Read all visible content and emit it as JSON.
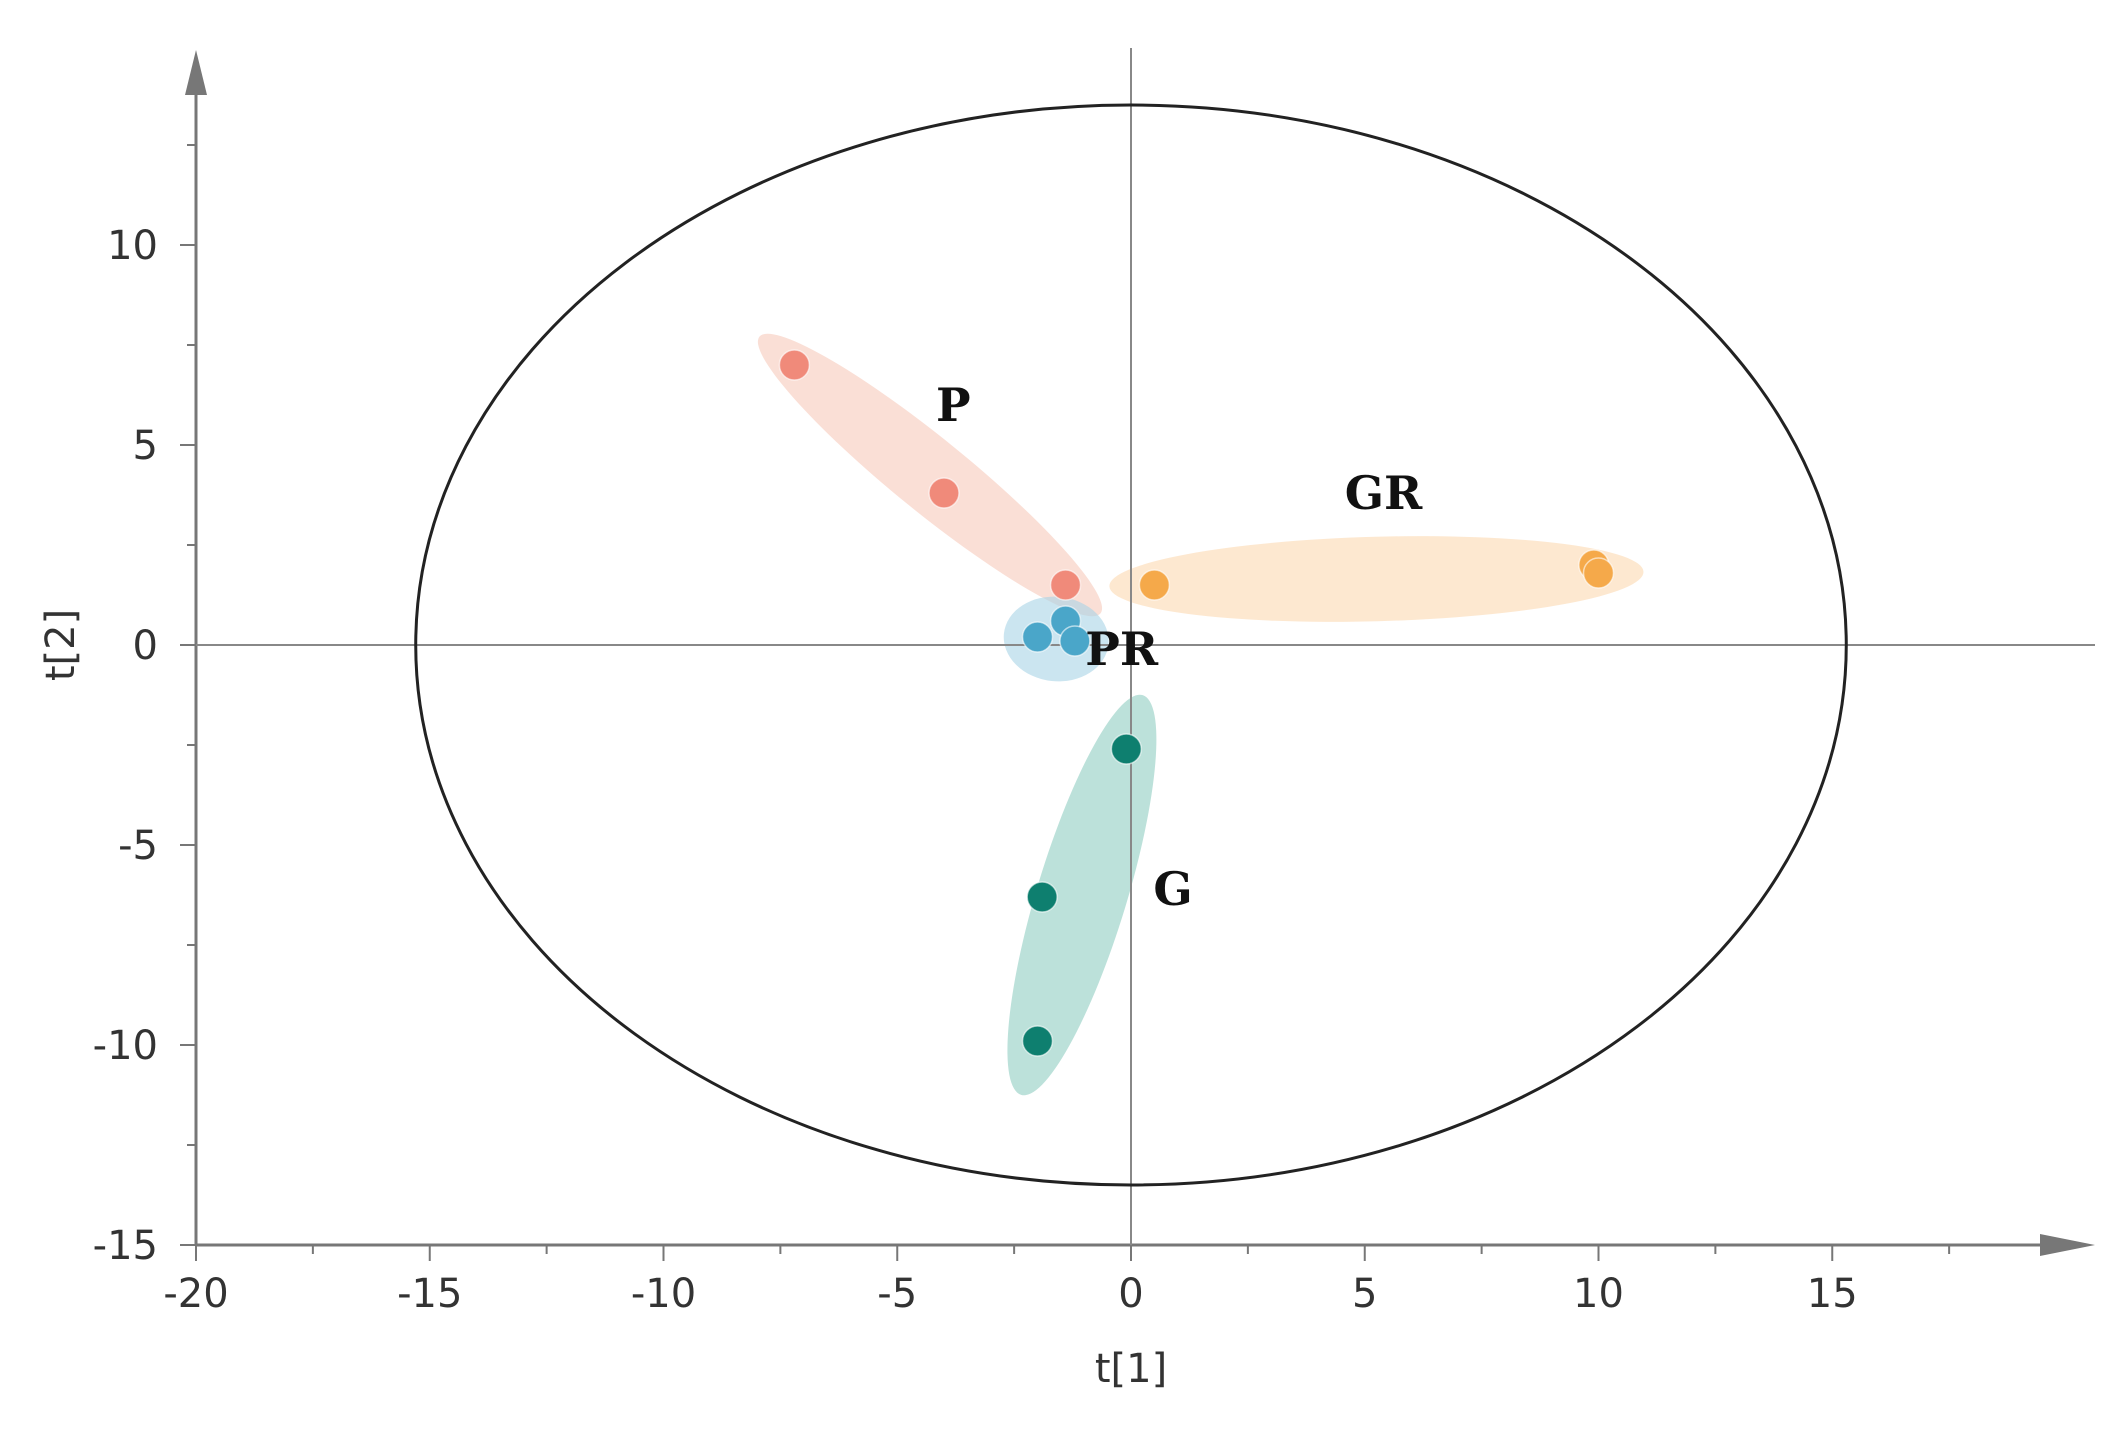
{
  "chart_data": {
    "type": "scatter",
    "title": "",
    "xlabel": "t[1]",
    "ylabel": "t[2]",
    "xlim": [
      -20,
      20
    ],
    "ylim": [
      -15,
      15
    ],
    "x_ticks": [
      -20,
      -15,
      -10,
      -5,
      0,
      5,
      10,
      15
    ],
    "y_ticks": [
      -15,
      -10,
      -5,
      0,
      5,
      10
    ],
    "x_tick_labels": [
      "-20",
      "-15",
      "-10",
      "-5",
      "0",
      "5",
      "10",
      "15"
    ],
    "y_tick_labels": [
      "-15",
      "-10",
      "-5",
      "0",
      "5",
      "10"
    ],
    "confidence_ellipse": {
      "semi_axis_x": 15.3,
      "semi_axis_y": 13.5
    },
    "grid": false,
    "groups": [
      {
        "label": "P",
        "color": "#f08a7a",
        "fill": "#f7c9ba",
        "points": [
          [
            -7.2,
            7.0
          ],
          [
            -4.0,
            3.8
          ],
          [
            -1.4,
            1.5
          ]
        ]
      },
      {
        "label": "PR",
        "color": "#4aa6c9",
        "fill": "#a9d3e6",
        "points": [
          [
            -2.0,
            0.2
          ],
          [
            -1.4,
            0.6
          ],
          [
            -1.2,
            0.1
          ]
        ]
      },
      {
        "label": "GR",
        "color": "#f5a94a",
        "fill": "#fcd9b0",
        "points": [
          [
            0.5,
            1.5
          ],
          [
            9.9,
            2.0
          ],
          [
            10.0,
            1.8
          ]
        ]
      },
      {
        "label": "G",
        "color": "#0e7f6f",
        "fill": "#8fcdc2",
        "points": [
          [
            -0.1,
            -2.6
          ],
          [
            -1.9,
            -6.3
          ],
          [
            -2.0,
            -9.9
          ]
        ]
      }
    ]
  }
}
